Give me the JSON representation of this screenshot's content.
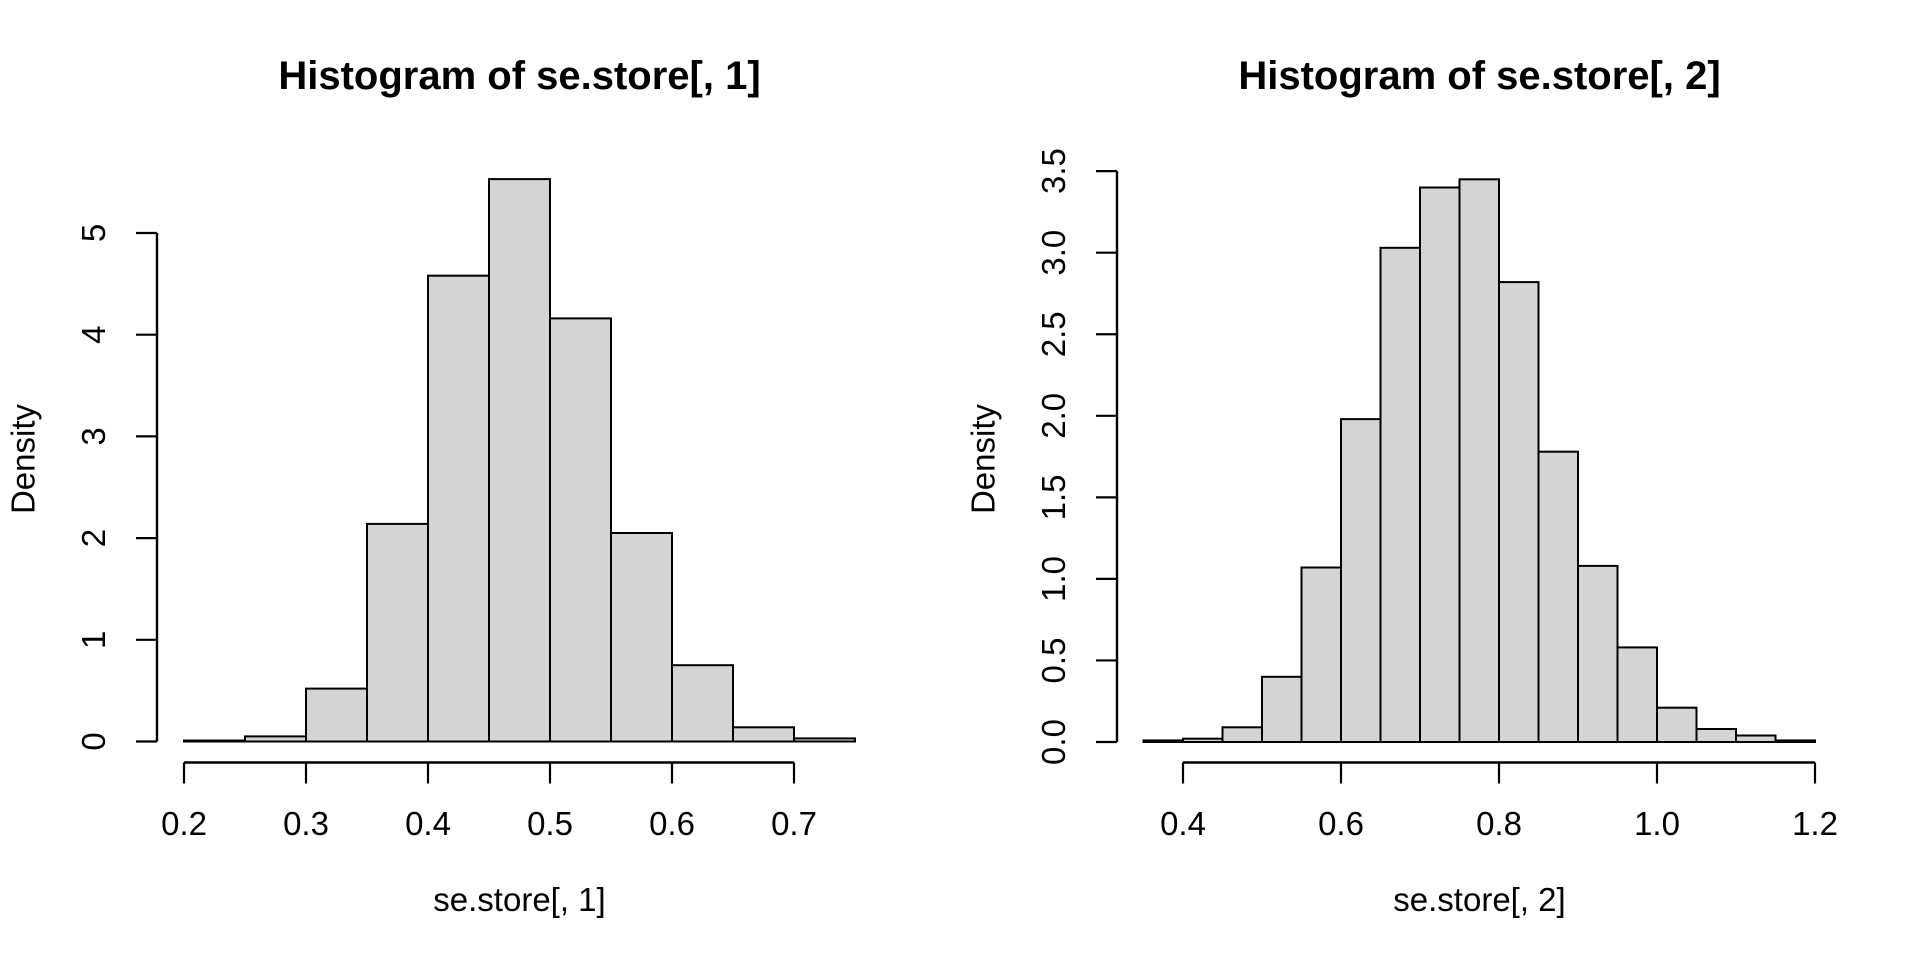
{
  "page": {
    "background": "#ffffff"
  },
  "style": {
    "bar_fill": "#d4d4d4",
    "bar_stroke": "#000000",
    "axis_color": "#000000",
    "text_color": "#000000"
  },
  "chart_data": [
    {
      "type": "bar",
      "kind": "histogram",
      "title": "Histogram of se.store[, 1]",
      "xlabel": "se.store[, 1]",
      "ylabel": "Density",
      "bin_start": 0.2,
      "bin_width": 0.05,
      "bin_edges": [
        0.2,
        0.25,
        0.3,
        0.35,
        0.4,
        0.45,
        0.5,
        0.55,
        0.6,
        0.65,
        0.7,
        0.75
      ],
      "densities": [
        0.01,
        0.05,
        0.52,
        2.14,
        4.58,
        5.53,
        4.16,
        2.05,
        0.75,
        0.14,
        0.03
      ],
      "x_tick_values": [
        0.2,
        0.3,
        0.4,
        0.5,
        0.6,
        0.7
      ],
      "x_tick_labels": [
        "0.2",
        "0.3",
        "0.4",
        "0.5",
        "0.6",
        "0.7"
      ],
      "y_tick_values": [
        0,
        1,
        2,
        3,
        4,
        5
      ],
      "y_tick_labels": [
        "0",
        "1",
        "2",
        "3",
        "4",
        "5"
      ],
      "xlim": [
        0.2,
        0.75
      ],
      "ylim": [
        0,
        5.53
      ],
      "grid": false,
      "legend": "none"
    },
    {
      "type": "bar",
      "kind": "histogram",
      "title": "Histogram of se.store[, 2]",
      "xlabel": "se.store[, 2]",
      "ylabel": "Density",
      "bin_start": 0.35,
      "bin_width": 0.05,
      "bin_edges": [
        0.35,
        0.4,
        0.45,
        0.5,
        0.55,
        0.6,
        0.65,
        0.7,
        0.75,
        0.8,
        0.85,
        0.9,
        0.95,
        1.0,
        1.05,
        1.1,
        1.15,
        1.2
      ],
      "densities": [
        0.01,
        0.02,
        0.09,
        0.4,
        1.07,
        1.98,
        3.03,
        3.4,
        3.45,
        2.82,
        1.78,
        1.08,
        0.58,
        0.21,
        0.08,
        0.04,
        0.01
      ],
      "x_tick_values": [
        0.4,
        0.6,
        0.8,
        1.0,
        1.2
      ],
      "x_tick_labels": [
        "0.4",
        "0.6",
        "0.8",
        "1.0",
        "1.2"
      ],
      "y_tick_values": [
        0,
        0.5,
        1,
        1.5,
        2,
        2.5,
        3,
        3.5
      ],
      "y_tick_labels": [
        "0.0",
        "0.5",
        "1.0",
        "1.5",
        "2.0",
        "2.5",
        "3.0",
        "3.5"
      ],
      "xlim": [
        0.35,
        1.2
      ],
      "ylim": [
        0,
        3.45
      ],
      "grid": false,
      "legend": "none"
    }
  ]
}
